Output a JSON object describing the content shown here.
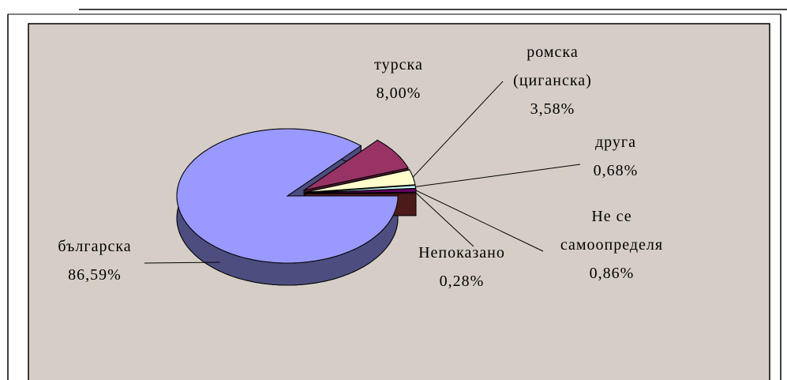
{
  "chart_data": {
    "type": "pie",
    "categories": [
      "българска",
      "турска",
      "ромска (циганска)",
      "друга",
      "Не се самоопределя",
      "Непоказано"
    ],
    "values": [
      86.59,
      8.0,
      3.58,
      0.68,
      0.86,
      0.28
    ],
    "value_labels": [
      "86,59%",
      "8,00%",
      "3,58%",
      "0,68%",
      "0,86%",
      "0,28%"
    ],
    "colors": [
      "#9999ff",
      "#993366",
      "#ffffcc",
      "#ccffff",
      "#660066",
      "#993333"
    ]
  }
}
